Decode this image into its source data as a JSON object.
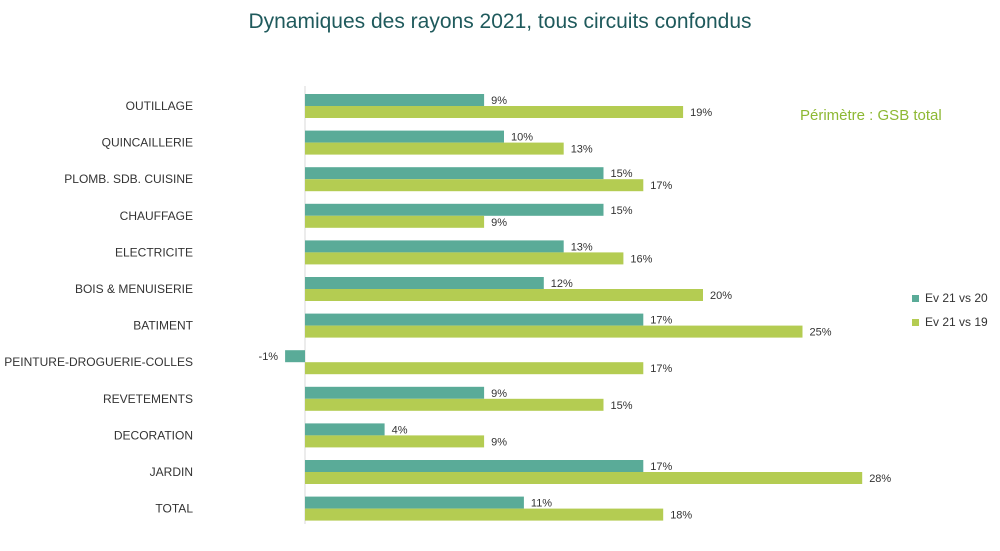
{
  "chart_data": {
    "type": "bar",
    "orientation": "horizontal",
    "title": "Dynamiques des rayons 2021, tous circuits confondus",
    "annotation": "Périmètre : GSB total",
    "categories": [
      "OUTILLAGE",
      "QUINCAILLERIE",
      "PLOMB. SDB. CUISINE",
      "CHAUFFAGE",
      "ELECTRICITE",
      "BOIS & MENUISERIE",
      "BATIMENT",
      "PEINTURE-DROGUERIE-COLLES",
      "REVETEMENTS",
      "DECORATION",
      "JARDIN",
      "TOTAL"
    ],
    "series": [
      {
        "name": "Ev 21 vs 20",
        "color": "#5aab98",
        "values": [
          9,
          10,
          15,
          15,
          13,
          12,
          17,
          -1,
          9,
          4,
          17,
          11
        ]
      },
      {
        "name": "Ev 21 vs 19",
        "color": "#b4cc52",
        "values": [
          19,
          13,
          17,
          9,
          16,
          20,
          25,
          17,
          15,
          9,
          28,
          18
        ]
      }
    ],
    "value_format": "percent",
    "legend_position": "right",
    "grid": false
  }
}
